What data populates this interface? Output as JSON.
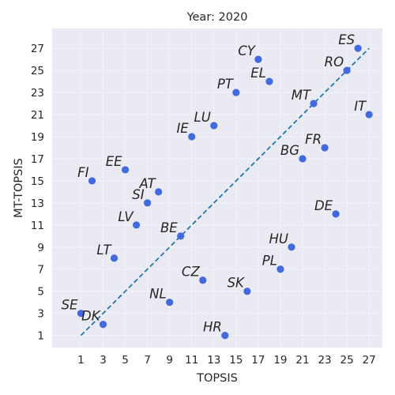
{
  "chart_data": {
    "type": "scatter",
    "title": "Year: 2020",
    "xlabel": "TOPSIS",
    "ylabel": "MT-TOPSIS",
    "xlim": [
      -1.6,
      28.2
    ],
    "ylim": [
      -0.1,
      28.8
    ],
    "xticks": [
      1,
      3,
      5,
      7,
      9,
      11,
      13,
      15,
      17,
      19,
      21,
      23,
      25,
      27
    ],
    "yticks": [
      1,
      3,
      5,
      7,
      9,
      11,
      13,
      15,
      17,
      19,
      21,
      23,
      25,
      27
    ],
    "grid": true,
    "reference_line": {
      "x": [
        1,
        27
      ],
      "y": [
        1,
        27
      ],
      "style": "dashed"
    },
    "colors": {
      "points": "#4169e1",
      "reference_line": "#1f77b4",
      "background": "#eaeaf2"
    },
    "points": [
      {
        "label": "ES",
        "x": 26,
        "y": 27
      },
      {
        "label": "CY",
        "x": 17,
        "y": 26
      },
      {
        "label": "RO",
        "x": 25,
        "y": 25
      },
      {
        "label": "EL",
        "x": 18,
        "y": 24
      },
      {
        "label": "PT",
        "x": 15,
        "y": 23
      },
      {
        "label": "MT",
        "x": 22,
        "y": 22
      },
      {
        "label": "IT",
        "x": 27,
        "y": 21
      },
      {
        "label": "LU",
        "x": 13,
        "y": 20
      },
      {
        "label": "IE",
        "x": 11,
        "y": 19
      },
      {
        "label": "FR",
        "x": 23,
        "y": 18
      },
      {
        "label": "BG",
        "x": 21,
        "y": 17
      },
      {
        "label": "EE",
        "x": 5,
        "y": 16
      },
      {
        "label": "FI",
        "x": 2,
        "y": 15
      },
      {
        "label": "AT",
        "x": 8,
        "y": 14
      },
      {
        "label": "SI",
        "x": 7,
        "y": 13
      },
      {
        "label": "DE",
        "x": 24,
        "y": 12
      },
      {
        "label": "LV",
        "x": 6,
        "y": 11
      },
      {
        "label": "BE",
        "x": 10,
        "y": 10
      },
      {
        "label": "HU",
        "x": 20,
        "y": 9
      },
      {
        "label": "LT",
        "x": 4,
        "y": 8
      },
      {
        "label": "PL",
        "x": 19,
        "y": 7
      },
      {
        "label": "CZ",
        "x": 12,
        "y": 6
      },
      {
        "label": "SK",
        "x": 16,
        "y": 5
      },
      {
        "label": "NL",
        "x": 9,
        "y": 4
      },
      {
        "label": "SE",
        "x": 1,
        "y": 3
      },
      {
        "label": "DK",
        "x": 3,
        "y": 2
      },
      {
        "label": "HR",
        "x": 14,
        "y": 1
      }
    ]
  }
}
